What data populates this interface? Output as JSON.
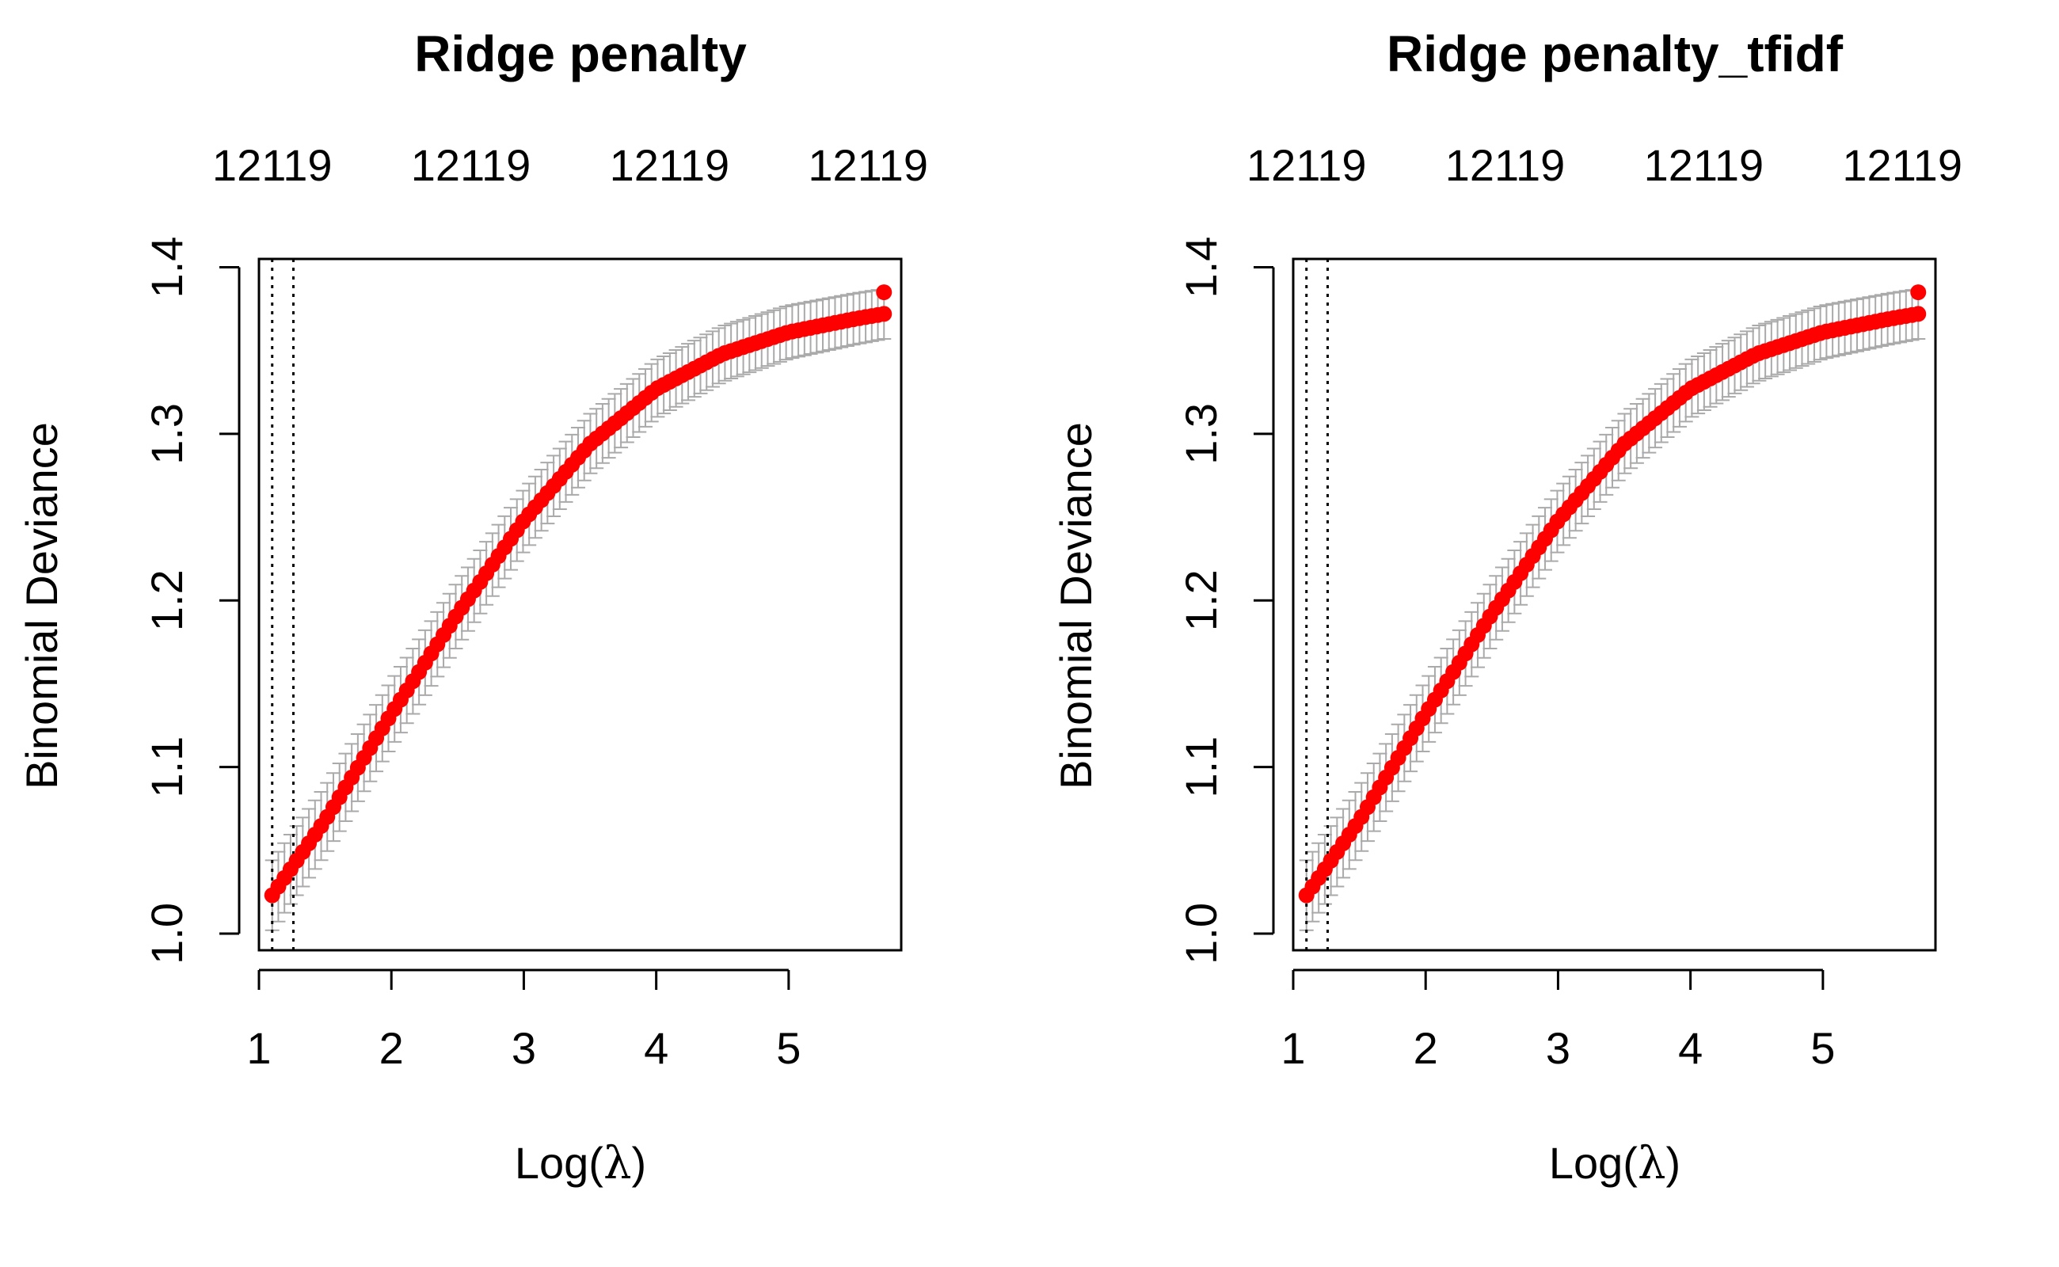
{
  "chart_data": [
    {
      "type": "line",
      "title": "Ridge penalty",
      "xlabel_prefix": "Log(",
      "xlabel_symbol": "λ",
      "xlabel_suffix": ")",
      "ylabel": "Binomial Deviance",
      "xlim": [
        1.0,
        5.85
      ],
      "ylim": [
        0.99,
        1.405
      ],
      "x_ticks": [
        "1",
        "2",
        "3",
        "4",
        "5"
      ],
      "y_ticks": [
        "1.0",
        "1.1",
        "1.2",
        "1.3",
        "1.4"
      ],
      "top_ticks": [
        "12119",
        "12119",
        "12119",
        "12119"
      ],
      "top_tick_x": [
        1.1,
        2.6,
        4.1,
        5.6
      ],
      "vlines": [
        1.1,
        1.26
      ],
      "series": [
        {
          "x": [
            1.1,
            1.5,
            2.0,
            2.5,
            3.0,
            3.5,
            4.0,
            4.5,
            5.0,
            5.5,
            5.72
          ],
          "y": [
            1.023,
            1.068,
            1.132,
            1.192,
            1.248,
            1.294,
            1.327,
            1.348,
            1.361,
            1.369,
            1.372
          ],
          "color": "#ff0000"
        }
      ],
      "outlier_point": {
        "x": 5.72,
        "y": 1.385
      },
      "error_bar_color": "#aaaaaa"
    },
    {
      "type": "line",
      "title": "Ridge penalty_tfidf",
      "xlabel_prefix": "Log(",
      "xlabel_symbol": "λ",
      "xlabel_suffix": ")",
      "ylabel": "Binomial Deviance",
      "xlim": [
        1.0,
        5.85
      ],
      "ylim": [
        0.99,
        1.405
      ],
      "x_ticks": [
        "1",
        "2",
        "3",
        "4",
        "5"
      ],
      "y_ticks": [
        "1.0",
        "1.1",
        "1.2",
        "1.3",
        "1.4"
      ],
      "top_ticks": [
        "12119",
        "12119",
        "12119",
        "12119"
      ],
      "top_tick_x": [
        1.1,
        2.6,
        4.1,
        5.6
      ],
      "vlines": [
        1.1,
        1.26
      ],
      "series": [
        {
          "x": [
            1.1,
            1.5,
            2.0,
            2.5,
            3.0,
            3.5,
            4.0,
            4.5,
            5.0,
            5.5,
            5.72
          ],
          "y": [
            1.023,
            1.068,
            1.132,
            1.192,
            1.248,
            1.294,
            1.327,
            1.348,
            1.361,
            1.369,
            1.372
          ],
          "color": "#ff0000"
        }
      ],
      "outlier_point": {
        "x": 5.72,
        "y": 1.385
      },
      "error_bar_color": "#aaaaaa"
    }
  ]
}
